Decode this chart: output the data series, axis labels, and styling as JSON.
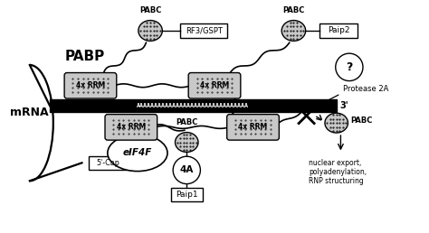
{
  "bg_color": "#ffffff",
  "pabp_label": "PABP",
  "mrna_label": "mRNA",
  "poly_a": "AAAAAAAAAAAAAAAAAAAAAAAAAAAAAAA",
  "three_prime": "3'",
  "five_cap": "5'-Cap",
  "labels": {
    "pabc1": "PABC",
    "pabc2": "PABC",
    "pabc3": "PABC",
    "pabc4": "PABC",
    "rf3": "RF3/GSPT",
    "paip2": "Paip2",
    "question": "?",
    "protease": "Protease 2A",
    "rrm1": "4x RRM",
    "rrm2": "4x RRM",
    "rrm3": "4x RRM",
    "rrm4": "4x RRM",
    "eif4f": "eIF4F",
    "fourcap": "4A",
    "paip1": "Paip1",
    "nuclear": "nuclear export,\npolyadenylation,\nRNP structuring"
  }
}
